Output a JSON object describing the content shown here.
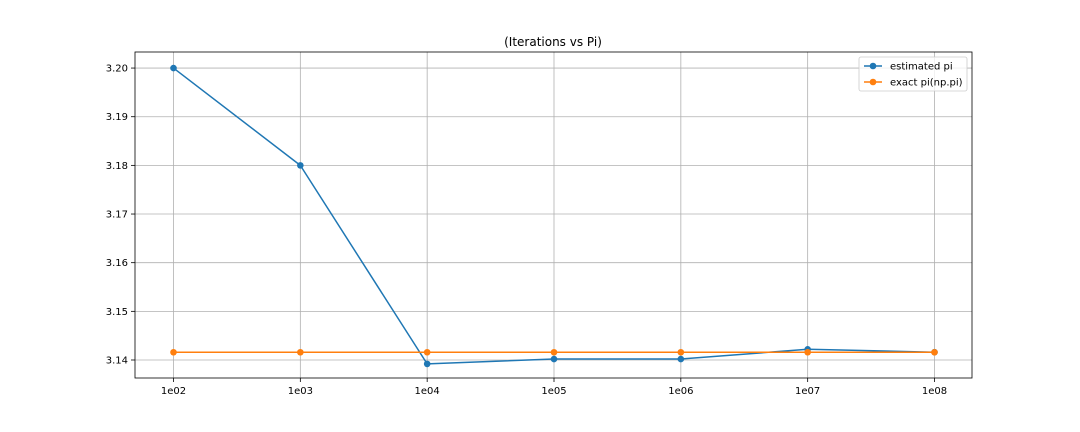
{
  "chart_data": {
    "type": "line",
    "title": "(Iterations vs Pi)",
    "xlabel": "",
    "ylabel": "",
    "categories": [
      "1e02",
      "1e03",
      "1e04",
      "1e05",
      "1e06",
      "1e07",
      "1e08"
    ],
    "yticks": [
      "3.14",
      "3.15",
      "3.16",
      "3.17",
      "3.18",
      "3.19",
      "3.20"
    ],
    "ylim": [
      3.1363,
      3.2033
    ],
    "grid": true,
    "legend_position": "top-right",
    "series": [
      {
        "name": "estimated pi",
        "color": "#1f77b4",
        "values": [
          3.2,
          3.18,
          3.1392,
          3.1402,
          3.1402,
          3.1422,
          3.1416
        ]
      },
      {
        "name": "exact pi(np.pi)",
        "color": "#ff7f0e",
        "values": [
          3.14159,
          3.14159,
          3.14159,
          3.14159,
          3.14159,
          3.14159,
          3.14159
        ]
      }
    ]
  }
}
